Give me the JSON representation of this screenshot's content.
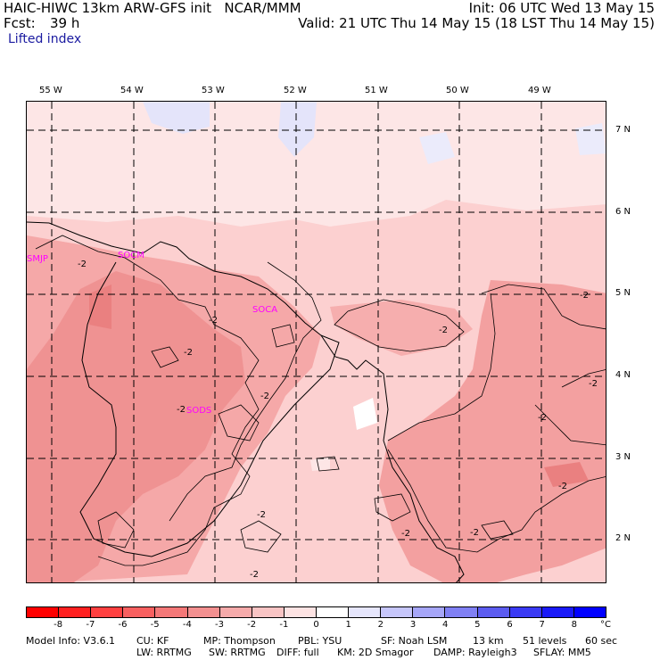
{
  "header": {
    "model_line": "HAIC-HIWC 13km ARW-GFS init",
    "center": "NCAR/MMM",
    "init": "Init: 06 UTC Wed 13 May 15",
    "fcst_label": "Fcst:",
    "fcst_value": "39 h",
    "valid": "Valid: 21 UTC Thu 14 May 15 (18 LST Thu 14 May 15)",
    "field": "Lifted index"
  },
  "map": {
    "lon_labels": [
      "55 W",
      "54 W",
      "53 W",
      "52 W",
      "51 W",
      "50 W",
      "49 W"
    ],
    "lat_labels": [
      "7 N",
      "6 N",
      "5 N",
      "4 N",
      "3 N",
      "2 N"
    ],
    "stations": [
      "SMJP",
      "SOCM",
      "SOCA",
      "SODS"
    ],
    "contour_labels": [
      "-2",
      "-2",
      "-2",
      "-2",
      "-2",
      "-2",
      "-2",
      "-2",
      "-2",
      "-2",
      "-2",
      "-2",
      "-2",
      "-2"
    ],
    "colors": {
      "base": "#fcd0d0",
      "light": "#fde6e6",
      "medium": "#f5a8a8",
      "strong": "#ef9090",
      "blue_tint": "#e4e4fa",
      "white_patch": "#ffffff"
    }
  },
  "colorbar": {
    "ticks": [
      "-8",
      "-7",
      "-6",
      "-5",
      "-4",
      "-3",
      "-2",
      "-1",
      "0",
      "1",
      "2",
      "3",
      "4",
      "5",
      "6",
      "7",
      "8"
    ],
    "unit": "°C",
    "colors": [
      "#ff0000",
      "#ff2020",
      "#ff4040",
      "#f86060",
      "#f47878",
      "#f39090",
      "#f5aaaa",
      "#f8c4c4",
      "#fde3e3",
      "#ffffff",
      "#e6e6fc",
      "#c6c6fa",
      "#a6a6f8",
      "#8080f4",
      "#5c5cf0",
      "#3a3af4",
      "#1a1af8",
      "#0000ff"
    ]
  },
  "footer": {
    "line1": [
      "Model Info: V3.6.1",
      "CU: KF",
      "MP: Thompson",
      "PBL: YSU",
      "SF: Noah LSM",
      "13 km",
      "51 levels",
      "60 sec"
    ],
    "line2": [
      "LW: RRTMG",
      "SW: RRTMG",
      "DIFF: full",
      "KM: 2D Smagor",
      "DAMP: Rayleigh3",
      "SFLAY: MM5"
    ]
  }
}
